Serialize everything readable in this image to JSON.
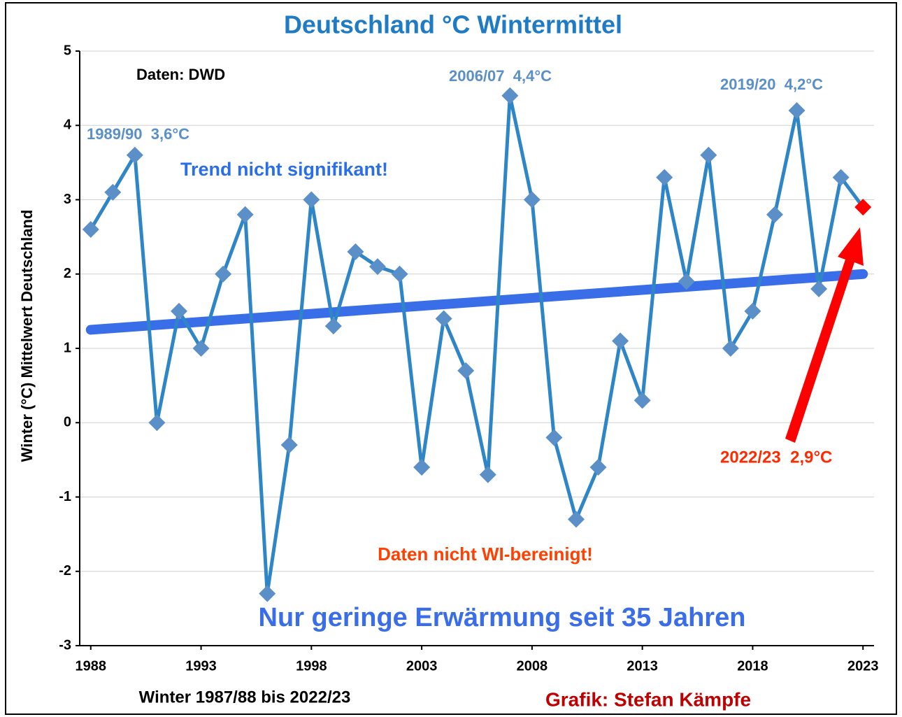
{
  "chart_data": {
    "type": "line",
    "title": "Deutschland °C Wintermittel",
    "x_label": "Winter 1987/88 bis 2022/23",
    "y_label": "Winter (°C) Mittelwert Deutschland",
    "x": [
      1988,
      1989,
      1990,
      1991,
      1992,
      1993,
      1994,
      1995,
      1996,
      1997,
      1998,
      1999,
      2000,
      2001,
      2002,
      2003,
      2004,
      2005,
      2006,
      2007,
      2008,
      2009,
      2010,
      2011,
      2012,
      2013,
      2014,
      2015,
      2016,
      2017,
      2018,
      2019,
      2020,
      2021,
      2022,
      2023
    ],
    "series": [
      {
        "color": "#2f86c6",
        "values": [
          2.6,
          3.1,
          3.6,
          0.0,
          1.5,
          1.0,
          2.0,
          2.8,
          -2.3,
          -0.3,
          3.0,
          1.3,
          2.3,
          2.1,
          2.0,
          -0.6,
          1.4,
          0.7,
          -0.7,
          4.4,
          3.0,
          -0.2,
          -1.3,
          -0.6,
          1.1,
          0.3,
          3.3,
          1.9,
          3.6,
          1.0,
          1.5,
          2.8,
          4.2,
          1.8,
          3.3,
          2.9
        ],
        "marker_color": "#5a8fc8",
        "last_point_color": "#ff0000"
      }
    ],
    "trend": {
      "x": [
        1988,
        2023
      ],
      "values": [
        1.25,
        2.0
      ],
      "color": "#3a6ee8"
    },
    "xlim": [
      1987.5,
      2023.5
    ],
    "xticks": [
      1988,
      1993,
      1998,
      2003,
      2008,
      2013,
      2018,
      2023
    ],
    "ylim": [
      -3,
      5
    ],
    "yticks": [
      -3,
      -2,
      -1,
      0,
      1,
      2,
      3,
      4,
      5
    ],
    "grid": true,
    "annotations": [
      "Daten: DWD",
      "1989/90  3,6°C",
      "2006/07  4,4°C",
      "2019/20  4,2°C",
      "Trend nicht signifikant!",
      "Daten nicht WI-bereinigt!",
      "Nur geringe Erwärmung seit 35 Jahren",
      "2022/23  2,9°C",
      "Grafik: Stefan Kämpfe"
    ]
  }
}
